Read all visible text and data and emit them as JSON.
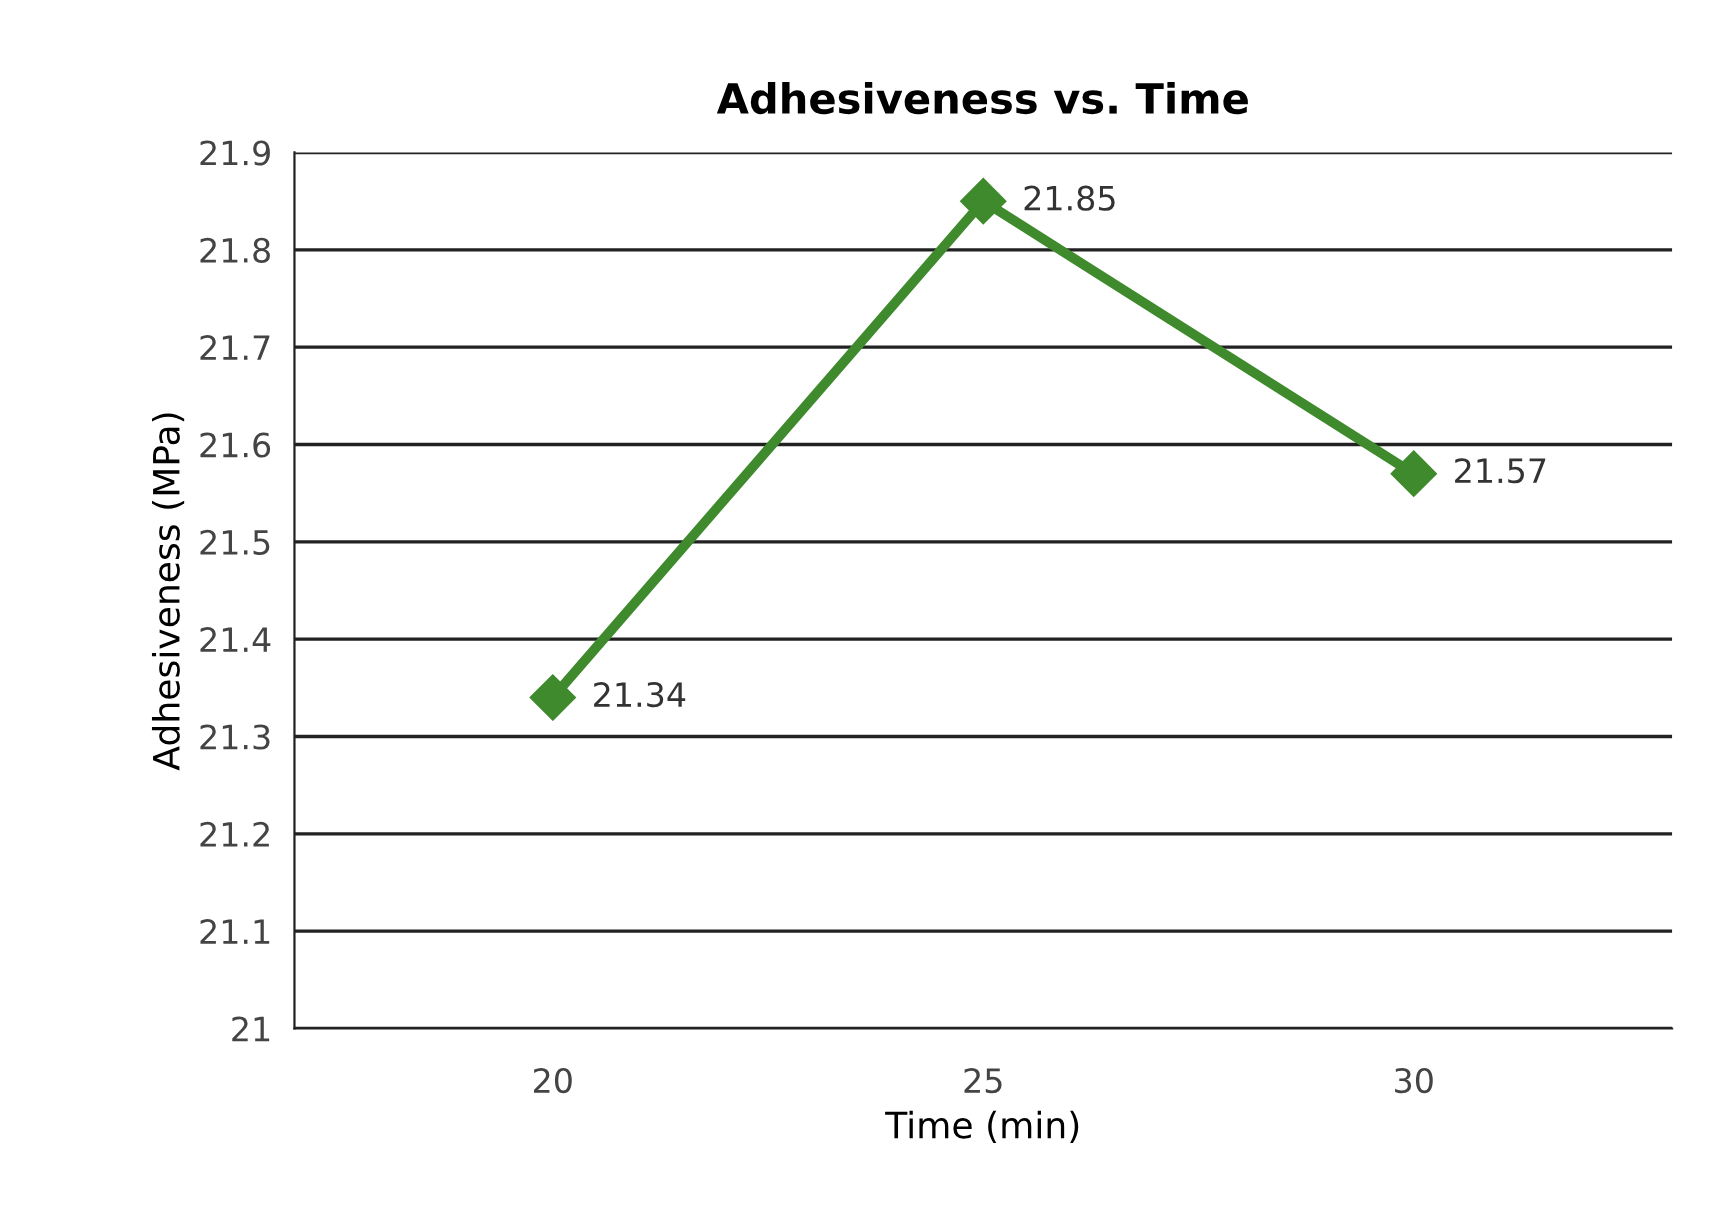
{
  "chart_data": {
    "type": "line",
    "title": "Adhesiveness vs. Time",
    "xlabel": "Time (min)",
    "ylabel": "Adhesiveness (MPa)",
    "categories": [
      "20",
      "25",
      "30"
    ],
    "series": [
      {
        "color": "#3e8a2c",
        "values": [
          21.34,
          21.85,
          21.57
        ]
      }
    ],
    "ylim": [
      21,
      21.9
    ],
    "yticks": [
      21,
      21.1,
      21.2,
      21.3,
      21.4,
      21.5,
      21.6,
      21.7,
      21.8,
      21.9
    ],
    "grid": "y",
    "marker": "diamond",
    "line_style": "solid",
    "data_labels": true,
    "legend": false
  }
}
